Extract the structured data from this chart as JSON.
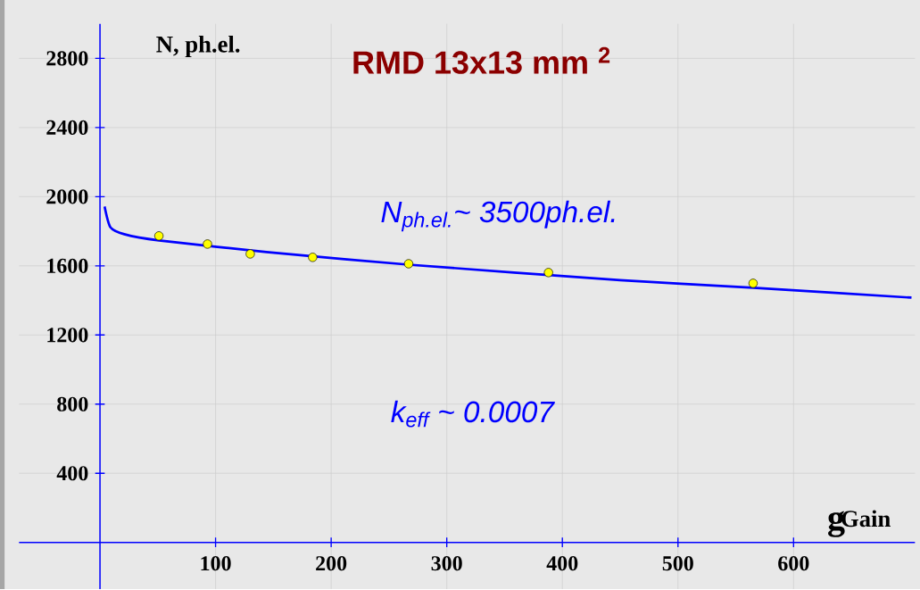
{
  "chart_data": {
    "type": "scatter",
    "title": "RMD 13x13 mm $^{2}$",
    "xlabel": "Gain",
    "ylabel": "N, ph.el.",
    "annotations": [
      "N$_{ph.el.}$~ 3500ph.el.",
      "k$_{eff}$ ~ 0.0007",
      "g"
    ],
    "series": [
      {
        "color": "#ffff00",
        "marker": "circle",
        "x": [
          51,
          93,
          130,
          184,
          267,
          388,
          565
        ],
        "values": [
          1773,
          1726,
          1669,
          1649,
          1612,
          1561,
          1499
        ]
      },
      {
        "type": "line",
        "color": "#0000ff",
        "marker": "none",
        "line_style": "solid",
        "x": [
          4,
          9,
          21,
          51,
          144,
          267,
          450,
          565,
          702
        ],
        "values": [
          1943,
          1824,
          1783,
          1747,
          1680,
          1607,
          1517,
          1473,
          1416
        ]
      }
    ],
    "xlim": [
      -70,
      705
    ],
    "ylim": [
      -270,
      3000
    ],
    "xticks": [
      100,
      200,
      300,
      400,
      500,
      600
    ],
    "yticks": [
      400,
      800,
      1200,
      1600,
      2000,
      2400,
      2800
    ],
    "grid": true
  }
}
